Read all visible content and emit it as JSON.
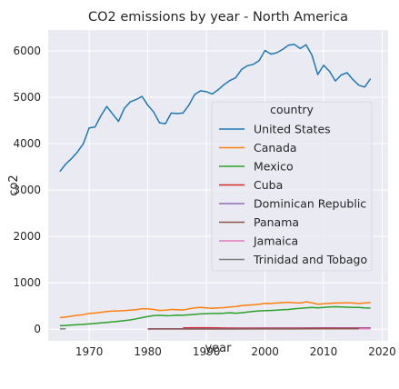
{
  "chart_data": {
    "type": "line",
    "title": "CO2 emissions by year - North America",
    "xlabel": "year",
    "ylabel": "co2",
    "xlim": [
      1963,
      2021
    ],
    "ylim": [
      -250,
      6450
    ],
    "x_ticks": [
      1970,
      1980,
      1990,
      2000,
      2010,
      2020
    ],
    "y_ticks": [
      0,
      1000,
      2000,
      3000,
      4000,
      5000,
      6000
    ],
    "grid": true,
    "legend": {
      "title": "country",
      "placement": "center-right"
    },
    "series": [
      {
        "name": "United States",
        "color": "#1f77b4",
        "x": [
          1965,
          1966,
          1967,
          1968,
          1969,
          1970,
          1971,
          1972,
          1973,
          1974,
          1975,
          1976,
          1977,
          1978,
          1979,
          1980,
          1981,
          1982,
          1983,
          1984,
          1985,
          1986,
          1987,
          1988,
          1989,
          1990,
          1991,
          1992,
          1993,
          1994,
          1995,
          1996,
          1997,
          1998,
          1999,
          2000,
          2001,
          2002,
          2003,
          2004,
          2005,
          2006,
          2007,
          2008,
          2009,
          2010,
          2011,
          2012,
          2013,
          2014,
          2015,
          2016,
          2017,
          2018
        ],
        "y": [
          3400,
          3560,
          3680,
          3820,
          4000,
          4340,
          4360,
          4600,
          4800,
          4640,
          4480,
          4760,
          4900,
          4950,
          5020,
          4830,
          4680,
          4450,
          4430,
          4660,
          4650,
          4660,
          4830,
          5060,
          5140,
          5120,
          5070,
          5160,
          5270,
          5360,
          5420,
          5600,
          5680,
          5710,
          5790,
          6010,
          5930,
          5960,
          6030,
          6120,
          6140,
          6050,
          6130,
          5910,
          5490,
          5690,
          5560,
          5350,
          5480,
          5530,
          5380,
          5260,
          5220,
          5400
        ]
      },
      {
        "name": "Canada",
        "color": "#ff7f0e",
        "x": [
          1965,
          1966,
          1967,
          1968,
          1969,
          1970,
          1971,
          1972,
          1973,
          1974,
          1975,
          1976,
          1977,
          1978,
          1979,
          1980,
          1981,
          1982,
          1983,
          1984,
          1985,
          1986,
          1987,
          1988,
          1989,
          1990,
          1991,
          1992,
          1993,
          1994,
          1995,
          1996,
          1997,
          1998,
          1999,
          2000,
          2001,
          2002,
          2003,
          2004,
          2005,
          2006,
          2007,
          2008,
          2009,
          2010,
          2011,
          2012,
          2013,
          2014,
          2015,
          2016,
          2017,
          2018
        ],
        "y": [
          250,
          265,
          280,
          300,
          315,
          340,
          350,
          365,
          380,
          390,
          395,
          400,
          410,
          420,
          440,
          440,
          425,
          405,
          410,
          425,
          420,
          415,
          440,
          460,
          470,
          460,
          450,
          460,
          465,
          480,
          490,
          510,
          520,
          525,
          540,
          560,
          555,
          565,
          575,
          580,
          570,
          565,
          590,
          570,
          540,
          550,
          560,
          565,
          565,
          570,
          565,
          555,
          565,
          575
        ]
      },
      {
        "name": "Mexico",
        "color": "#2ca02c",
        "x": [
          1965,
          1966,
          1967,
          1968,
          1969,
          1970,
          1971,
          1972,
          1973,
          1974,
          1975,
          1976,
          1977,
          1978,
          1979,
          1980,
          1981,
          1982,
          1983,
          1984,
          1985,
          1986,
          1987,
          1988,
          1989,
          1990,
          1991,
          1992,
          1993,
          1994,
          1995,
          1996,
          1997,
          1998,
          1999,
          2000,
          2001,
          2002,
          2003,
          2004,
          2005,
          2006,
          2007,
          2008,
          2009,
          2010,
          2011,
          2012,
          2013,
          2014,
          2015,
          2016,
          2017,
          2018
        ],
        "y": [
          75,
          82,
          90,
          97,
          104,
          115,
          125,
          135,
          148,
          160,
          172,
          185,
          200,
          225,
          250,
          275,
          295,
          300,
          290,
          295,
          305,
          300,
          310,
          320,
          330,
          335,
          340,
          340,
          345,
          355,
          345,
          355,
          370,
          385,
          395,
          400,
          405,
          410,
          420,
          425,
          440,
          450,
          460,
          470,
          460,
          470,
          480,
          485,
          480,
          475,
          470,
          470,
          460,
          455
        ]
      },
      {
        "name": "Cuba",
        "color": "#d62728",
        "x": [
          1986,
          1990,
          1995,
          2000,
          2005,
          2010,
          2015,
          2018
        ],
        "y": [
          30,
          32,
          25,
          27,
          26,
          30,
          30,
          28
        ]
      },
      {
        "name": "Dominican Republic",
        "color": "#9467bd",
        "x": [
          1980,
          1985,
          1990,
          1995,
          2000,
          2005,
          2010,
          2015,
          2018
        ],
        "y": [
          8,
          10,
          12,
          14,
          18,
          20,
          21,
          22,
          24
        ]
      },
      {
        "name": "Panama",
        "color": "#8c564b",
        "x": [
          1980,
          1985,
          1990,
          1995,
          2000,
          2005,
          2010,
          2015,
          2018
        ],
        "y": [
          4,
          4,
          4,
          5,
          6,
          7,
          9,
          11,
          12
        ]
      },
      {
        "name": "Jamaica",
        "color": "#e377c2",
        "x": [
          2016,
          2017,
          2018
        ],
        "y": [
          8,
          8,
          8
        ]
      },
      {
        "name": "Trinidad and Tobago",
        "color": "#7f7f7f",
        "x": [
          1965,
          1966
        ],
        "y": [
          8,
          8
        ]
      }
    ]
  }
}
